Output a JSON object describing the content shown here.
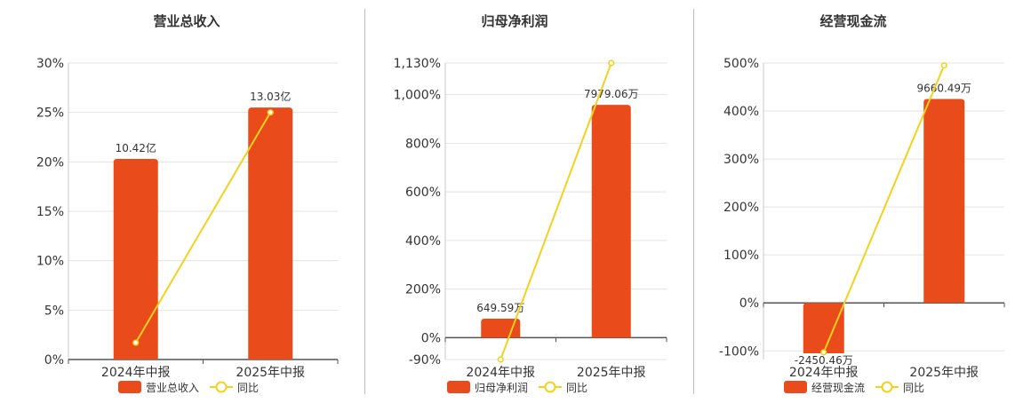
{
  "legend_line_label": "同比",
  "colors": {
    "bar": "#e94b1b",
    "line": "#f2d21f",
    "grid": "#e3e3e3",
    "axis": "#555555",
    "text": "#333333"
  },
  "chart_data": [
    {
      "type": "bar",
      "title": "营业总收入",
      "categories": [
        "2024年中报",
        "2025年中报"
      ],
      "series": [
        {
          "name": "营业总收入",
          "type": "bar",
          "values": [
            20.3,
            25.5
          ],
          "labels": [
            "10.42亿",
            "13.03亿"
          ]
        },
        {
          "name": "同比",
          "type": "line",
          "values": [
            1.7,
            25.0
          ]
        }
      ],
      "yticks": [
        0,
        5,
        10,
        15,
        20,
        25,
        30
      ],
      "ytick_labels": [
        "0%",
        "5%",
        "10%",
        "15%",
        "20%",
        "25%",
        "30%"
      ],
      "ylim": [
        0,
        30
      ],
      "grid": true,
      "legend": "bottom"
    },
    {
      "type": "bar",
      "title": "归母净利润",
      "categories": [
        "2024年中报",
        "2025年中报"
      ],
      "series": [
        {
          "name": "归母净利润",
          "type": "bar",
          "values": [
            78,
            958
          ],
          "labels": [
            "649.59万",
            "7979.06万"
          ]
        },
        {
          "name": "同比",
          "type": "line",
          "values": [
            -90,
            1130
          ]
        }
      ],
      "yticks": [
        -90,
        0,
        200,
        400,
        600,
        800,
        1000,
        1130
      ],
      "ytick_labels": [
        "-90%",
        "0%",
        "200%",
        "400%",
        "600%",
        "800%",
        "1,000%",
        "1,130%"
      ],
      "ylim": [
        -90,
        1130
      ],
      "grid": true,
      "legend": "bottom"
    },
    {
      "type": "bar",
      "title": "经营现金流",
      "categories": [
        "2024年中报",
        "2025年中报"
      ],
      "series": [
        {
          "name": "经营现金流",
          "type": "bar",
          "values": [
            -105,
            425
          ],
          "labels": [
            "-2450.46万",
            "9660.49万"
          ]
        },
        {
          "name": "同比",
          "type": "line",
          "values": [
            -103,
            495
          ]
        }
      ],
      "yticks": [
        -100,
        0,
        100,
        200,
        300,
        400,
        500
      ],
      "ytick_labels": [
        "-100%",
        "0%",
        "100%",
        "200%",
        "300%",
        "400%",
        "500%"
      ],
      "ylim": [
        -118,
        500
      ],
      "grid": true,
      "legend": "bottom"
    }
  ]
}
